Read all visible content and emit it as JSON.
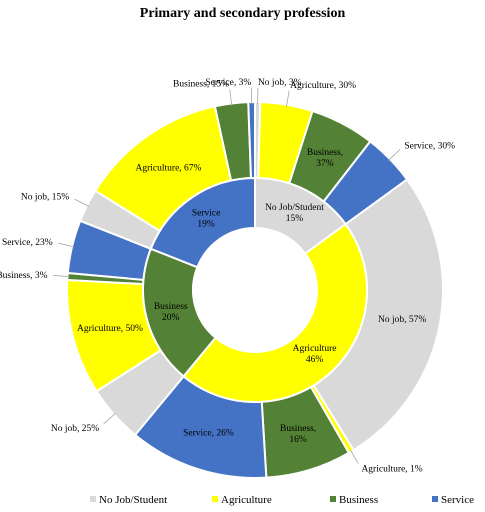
{
  "chart_data": {
    "type": "donut",
    "title": "Primary and secondary profession",
    "colors": {
      "No Job/Student": "#d9d9d9",
      "Agriculture": "#ffff00",
      "Business": "#538135",
      "Service": "#4472c4"
    },
    "inner_ring": [
      {
        "category": "No Job/Student",
        "label": "No Job/Student",
        "value": 15
      },
      {
        "category": "Agriculture",
        "label": "Agriculture",
        "value": 46
      },
      {
        "category": "Business",
        "label": "Business",
        "value": 20
      },
      {
        "category": "Service",
        "label": "Service",
        "value": 19
      }
    ],
    "outer_ring": [
      {
        "parent": "No Job/Student",
        "category": "No Job/Student",
        "label": "No job",
        "value": 3
      },
      {
        "parent": "No Job/Student",
        "category": "Agriculture",
        "label": "Agriculture",
        "value": 30
      },
      {
        "parent": "No Job/Student",
        "category": "Business",
        "label": "Business",
        "value": 37
      },
      {
        "parent": "No Job/Student",
        "category": "Service",
        "label": "Service",
        "value": 30
      },
      {
        "parent": "Agriculture",
        "category": "No Job/Student",
        "label": "No job",
        "value": 57
      },
      {
        "parent": "Agriculture",
        "category": "Agriculture",
        "label": "Agriculture",
        "value": 1
      },
      {
        "parent": "Agriculture",
        "category": "Business",
        "label": "Business",
        "value": 16
      },
      {
        "parent": "Agriculture",
        "category": "Service",
        "label": "Service",
        "value": 26
      },
      {
        "parent": "Business",
        "category": "No Job/Student",
        "label": "No job",
        "value": 25
      },
      {
        "parent": "Business",
        "category": "Agriculture",
        "label": "Agriculture",
        "value": 50
      },
      {
        "parent": "Business",
        "category": "Business",
        "label": "Business",
        "value": 3
      },
      {
        "parent": "Business",
        "category": "Service",
        "label": "Service",
        "value": 23
      },
      {
        "parent": "Service",
        "category": "No Job/Student",
        "label": "No job",
        "value": 15
      },
      {
        "parent": "Service",
        "category": "Agriculture",
        "label": "Agriculture",
        "value": 67
      },
      {
        "parent": "Service",
        "category": "Business",
        "label": "Business",
        "value": 15
      },
      {
        "parent": "Service",
        "category": "Service",
        "label": "Service",
        "value": 3
      }
    ],
    "legend": [
      "No Job/Student",
      "Agriculture",
      "Business",
      "Service"
    ],
    "legend_position": "bottom"
  }
}
